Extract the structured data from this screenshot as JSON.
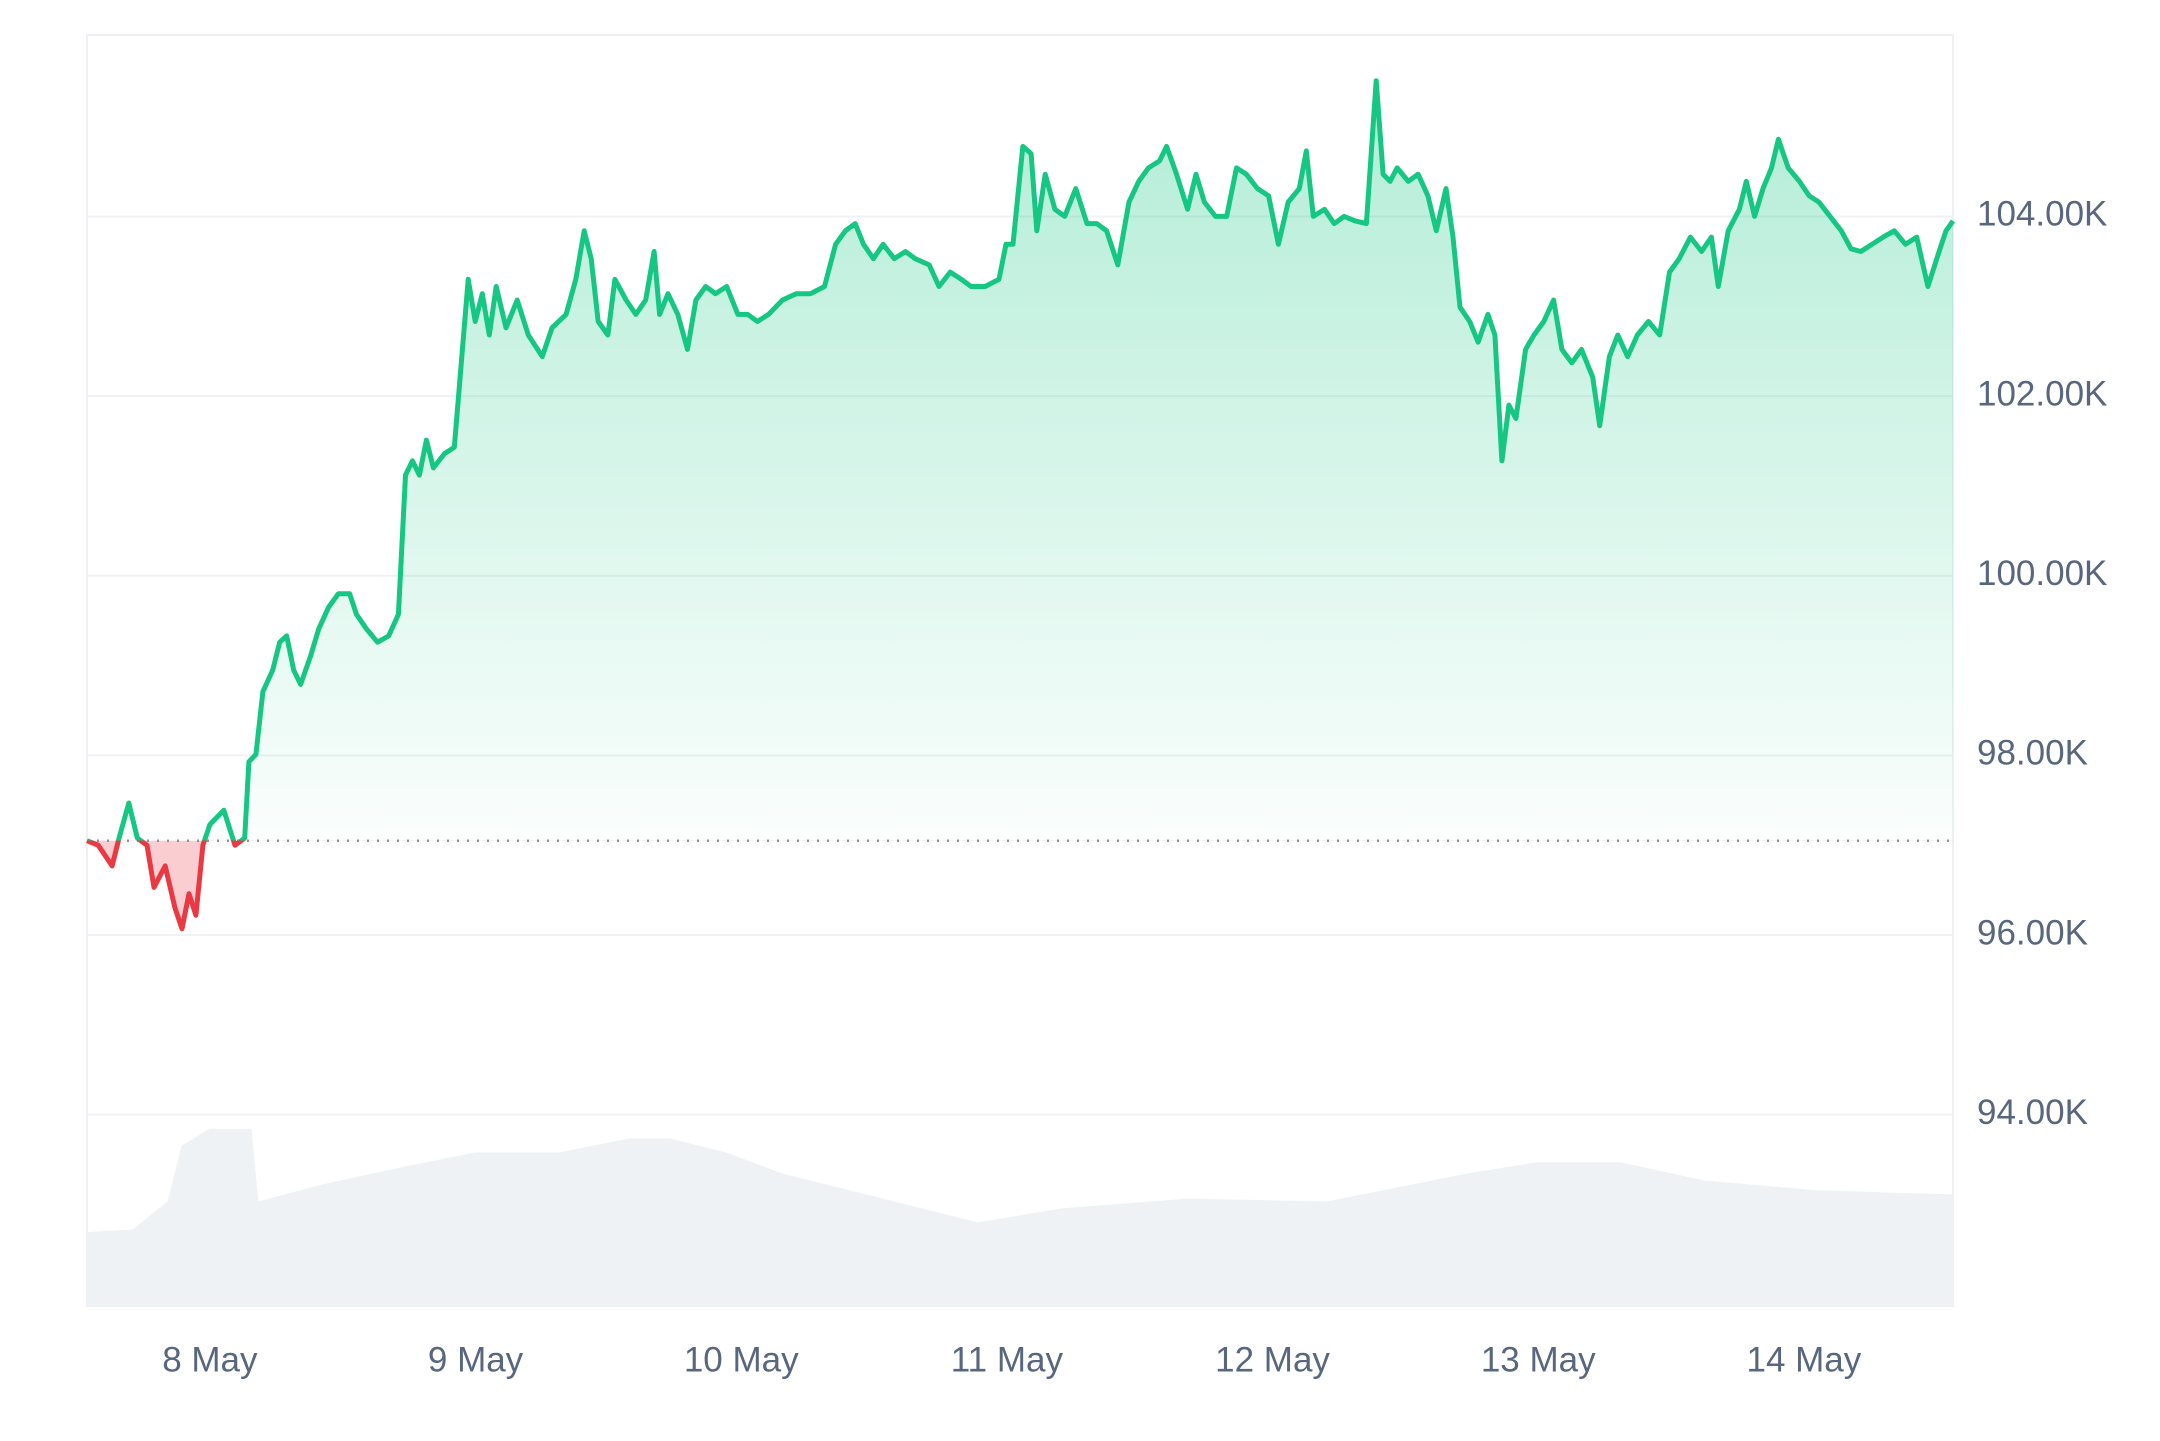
{
  "chart_data": {
    "type": "line",
    "x": [
      -11.1,
      -10.09,
      -8.83,
      -8.2,
      -7.32,
      -6.56,
      -5.68,
      -5.05,
      -4.04,
      -3.15,
      -2.52,
      -1.89,
      -1.26,
      -0.63,
      0,
      1.26,
      2.27,
      3.15,
      3.53,
      4.16,
      4.79,
      5.68,
      6.31,
      6.94,
      7.57,
      8.2,
      9.08,
      9.84,
      10.73,
      11.61,
      12.62,
      13.25,
      14.13,
      15.14,
      16.15,
      17.03,
      17.67,
      18.3,
      18.93,
      19.56,
      20.19,
      21.2,
      22.08,
      22.71,
      23.34,
      23.97,
      24.61,
      25.24,
      25.87,
      26.75,
      27.76,
      28.77,
      30.03,
      30.91,
      32.18,
      33.06,
      33.82,
      34.45,
      35.08,
      35.96,
      36.59,
      37.6,
      38.48,
      39.37,
      40.13,
      40.63,
      41.39,
      42.27,
      43.15,
      43.91,
      44.79,
      45.68,
      46.69,
      47.7,
      48.58,
      49.46,
      50.47,
      51.73,
      52.99,
      54.26,
      55.52,
      56.53,
      57.41,
      58.3,
      59.05,
      59.94,
      60.82,
      61.83,
      62.84,
      63.72,
      64.98,
      65.87,
      66.88,
      67.88,
      68.77,
      70.03,
      71.29,
      71.92,
      72.55,
      73.44,
      74.19,
      74.7,
      75.46,
      76.34,
      77.22,
      78.23,
      79.24,
      80.12,
      81.01,
      82.02,
      83.03,
      83.91,
      84.79,
      85.8,
      86.43,
      87.32,
      88.33,
      89.08,
      89.84,
      90.85,
      91.86,
      92.74,
      93.63,
      94.64,
      95.64,
      96.53,
      97.41,
      98.42,
      99.05,
      99.68,
      100.69,
      101.57,
      102.46,
      103.47,
      104.48,
      105.36,
      105.99,
      106.62,
      107.25,
      108.26,
      109.15,
      110.03,
      110.79,
      111.67,
      112.3,
      112.93,
      113.81,
      114.57,
      115.45,
      116.09,
      116.72,
      117.35,
      117.98,
      118.86,
      119.62,
      120.5,
      121.39,
      122.14,
      123.03,
      123.91,
      124.92,
      125.55,
      126.43,
      127.19,
      128.07,
      128.96,
      129.96,
      130.97,
      131.86,
      132.74,
      133.75,
      134.76,
      135.64,
      136.27,
      137.16,
      138.17,
      138.8,
      139.55,
      140.31,
      141.07,
      141.7,
      142.58,
      143.59,
      144.48,
      145.36,
      146.37,
      147.38,
      148.26,
      149.14,
      150.15,
      151.16,
      152.17,
      153.18,
      154.19,
      155.2,
      156.21,
      156.84,
      157.47
    ],
    "values": [
      97.05,
      97.0,
      96.77,
      97.08,
      97.47,
      97.08,
      97.0,
      96.53,
      96.77,
      96.3,
      96.07,
      96.46,
      96.22,
      97.0,
      97.23,
      97.39,
      97.0,
      97.08,
      97.93,
      98.01,
      98.71,
      98.95,
      99.26,
      99.33,
      98.95,
      98.79,
      99.1,
      99.41,
      99.65,
      99.8,
      99.8,
      99.57,
      99.41,
      99.26,
      99.33,
      99.57,
      101.12,
      101.28,
      101.12,
      101.51,
      101.2,
      101.36,
      101.43,
      102.37,
      103.3,
      102.83,
      103.14,
      102.68,
      103.22,
      102.76,
      103.07,
      102.68,
      102.44,
      102.76,
      102.91,
      103.3,
      103.84,
      103.53,
      102.83,
      102.68,
      103.3,
      103.07,
      102.91,
      103.07,
      103.61,
      102.91,
      103.14,
      102.91,
      102.52,
      103.07,
      103.22,
      103.14,
      103.22,
      102.91,
      102.91,
      102.83,
      102.91,
      103.07,
      103.14,
      103.14,
      103.22,
      103.69,
      103.84,
      103.92,
      103.69,
      103.53,
      103.69,
      103.53,
      103.61,
      103.53,
      103.46,
      103.22,
      103.38,
      103.3,
      103.22,
      103.22,
      103.3,
      103.69,
      103.69,
      104.78,
      104.7,
      103.84,
      104.47,
      104.08,
      104.0,
      104.31,
      103.92,
      103.92,
      103.84,
      103.46,
      104.16,
      104.39,
      104.54,
      104.62,
      104.78,
      104.47,
      104.08,
      104.47,
      104.16,
      104.0,
      104.0,
      104.54,
      104.47,
      104.31,
      104.23,
      103.69,
      104.16,
      104.31,
      104.73,
      104.0,
      104.08,
      103.92,
      104.0,
      103.95,
      103.92,
      105.51,
      104.47,
      104.39,
      104.54,
      104.39,
      104.47,
      104.23,
      103.84,
      104.31,
      103.77,
      102.99,
      102.83,
      102.6,
      102.91,
      102.68,
      101.28,
      101.9,
      101.75,
      102.52,
      102.68,
      102.83,
      103.07,
      102.52,
      102.37,
      102.52,
      102.21,
      101.67,
      102.44,
      102.68,
      102.44,
      102.68,
      102.83,
      102.68,
      103.38,
      103.53,
      103.77,
      103.61,
      103.77,
      103.22,
      103.84,
      104.08,
      104.39,
      104.0,
      104.31,
      104.54,
      104.86,
      104.54,
      104.39,
      104.23,
      104.16,
      104.0,
      103.84,
      103.64,
      103.61,
      103.69,
      103.77,
      103.84,
      103.69,
      103.77,
      103.22,
      103.61,
      103.84,
      103.95
    ],
    "color": "#16c784",
    "down_color": "#ea3943",
    "baseline": 97.05,
    "xlim": [
      -11.1,
      157.47
    ],
    "xticks": [
      {
        "value": 0,
        "label": "8 May"
      },
      {
        "value": 24,
        "label": "9 May"
      },
      {
        "value": 48,
        "label": "10 May"
      },
      {
        "value": 72,
        "label": "11 May"
      },
      {
        "value": 96,
        "label": "12 May"
      },
      {
        "value": 120,
        "label": "13 May"
      },
      {
        "value": 144,
        "label": "14 May"
      }
    ],
    "ylim": [
      91.87,
      106.02
    ],
    "yticks": [
      {
        "value": 94,
        "label": "94.00K"
      },
      {
        "value": 96,
        "label": "96.00K"
      },
      {
        "value": 98,
        "label": "98.00K"
      },
      {
        "value": 100,
        "label": "100.00K"
      },
      {
        "value": 102,
        "label": "102.00K"
      },
      {
        "value": 104,
        "label": "104.00K"
      }
    ],
    "grid": true
  }
}
